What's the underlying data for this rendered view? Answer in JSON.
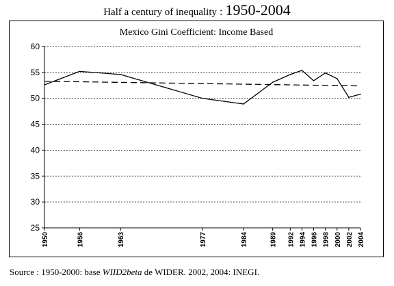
{
  "header": {
    "label": "Half a century of inequality",
    "separator": " : ",
    "years": "1950-2004"
  },
  "chart_data": {
    "type": "line",
    "title": "Mexico Gini Coefficient: Income Based",
    "xlabel": "",
    "ylabel": "",
    "x_categories": [
      "1950",
      "1956",
      "1963",
      "1977",
      "1984",
      "1989",
      "1992",
      "1994",
      "1996",
      "1998",
      "2000",
      "2002",
      "2004"
    ],
    "ylim": [
      25,
      60
    ],
    "yticks": [
      25,
      30,
      35,
      40,
      45,
      50,
      55,
      60
    ],
    "grid": "horizontal-dotted",
    "legend": "none",
    "series": [
      {
        "style": "solid",
        "color": "#000000",
        "x": [
          1950,
          1956,
          1963,
          1977,
          1984,
          1989,
          1992,
          1994,
          1996,
          1998,
          2000,
          2002,
          2004
        ],
        "y": [
          52.6,
          55.2,
          54.6,
          50.0,
          48.9,
          53.1,
          54.6,
          55.4,
          53.4,
          54.9,
          53.8,
          50.2,
          50.8
        ]
      },
      {
        "style": "dashed-trend",
        "color": "#000000",
        "x": [
          1950,
          2004
        ],
        "y": [
          53.3,
          52.4
        ]
      }
    ]
  },
  "source": {
    "prefix": "Source   : 1950-2000: base ",
    "italic": "WIID2beta",
    "suffix": " de WIDER. 2002, 2004: INEGI."
  }
}
